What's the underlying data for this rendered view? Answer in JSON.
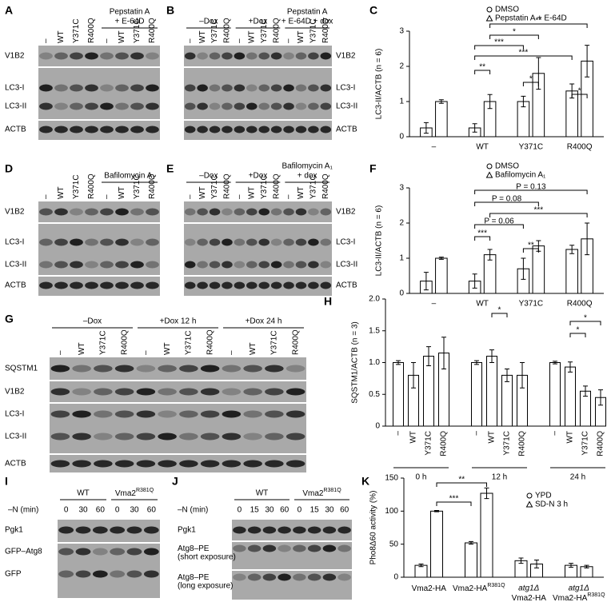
{
  "blots": [
    {
      "panel": "A",
      "lanes": [
        "–",
        "WT",
        "Y371C",
        "R400Q",
        "–",
        "WT",
        "Y371C",
        "R400Q"
      ],
      "groups": [
        [
          "Pepstatin A",
          "+ E-64D"
        ]
      ],
      "rows": [
        "V1B2",
        "LC3-I",
        "LC3-II",
        "ACTB"
      ]
    },
    {
      "panel": "B",
      "lanes": [
        "–",
        "WT",
        "Y371C",
        "R400Q",
        "–",
        "WT",
        "Y371C",
        "R400Q",
        "–",
        "WT",
        "Y371C",
        "R400Q"
      ],
      "groups": [
        "–Dox",
        "+Dox",
        [
          "Pepstatin A",
          "+ E-64D + dox"
        ]
      ],
      "rows": [
        "V1B2",
        "LC3-I",
        "LC3-II",
        "ACTB"
      ]
    },
    {
      "panel": "D",
      "lanes": [
        "–",
        "WT",
        "Y371C",
        "R400Q",
        "–",
        "WT",
        "Y371C",
        "R400Q"
      ],
      "groups": [
        "Bafilomycin A₁"
      ],
      "rows": [
        "V1B2",
        "LC3-I",
        "LC3-II",
        "ACTB"
      ]
    },
    {
      "panel": "E",
      "lanes": [
        "–",
        "WT",
        "Y371C",
        "R400Q",
        "–",
        "WT",
        "Y371C",
        "R400Q",
        "–",
        "WT",
        "Y371C",
        "R400Q"
      ],
      "groups": [
        "–Dox",
        "+Dox",
        [
          "Bafilomycin A₁",
          "+ dox"
        ]
      ],
      "rows": [
        "V1B2",
        "LC3-I",
        "LC3-II",
        "ACTB"
      ]
    },
    {
      "panel": "G",
      "lanes": [
        "–",
        "WT",
        "Y371C",
        "R400Q",
        "–",
        "WT",
        "Y371C",
        "R400Q",
        "–",
        "WT",
        "Y371C",
        "R400Q"
      ],
      "groups": [
        "–Dox",
        "+Dox 12 h",
        "+Dox 24 h"
      ],
      "rows": [
        "SQSTM1",
        "V1B2",
        "LC3-I",
        "LC3-II",
        "ACTB"
      ]
    },
    {
      "panel": "I",
      "axis_label": "–N (min)",
      "lanes": [
        0,
        30,
        60,
        0,
        30,
        60
      ],
      "groups": [
        "WT",
        {
          "main": "Vma2",
          "sup": "R381Q"
        }
      ],
      "rows": [
        "Pgk1",
        "GFP–Atg8",
        "GFP"
      ]
    },
    {
      "panel": "J",
      "axis_label": "–N (min)",
      "lanes": [
        0,
        15,
        30,
        60,
        0,
        15,
        30,
        60
      ],
      "groups": [
        "WT",
        {
          "main": "Vma2",
          "sup": "R381Q"
        }
      ],
      "rows": [
        "Pgk1",
        {
          "main": "Atg8–PE",
          "note": "(short exposure)"
        },
        {
          "main": "Atg8–PE",
          "note": "(long exposure)"
        }
      ]
    }
  ],
  "chart_data": [
    {
      "panel": "C",
      "type": "bar",
      "ylabel": "LC3-II/ACTB (n = 6)",
      "categories": [
        "–",
        "WT",
        "Y371C",
        "R400Q"
      ],
      "series": [
        {
          "name": "DMSO",
          "color": "#ffffff",
          "values": [
            0.25,
            0.25,
            1.0,
            1.3
          ],
          "errors": [
            0.15,
            0.12,
            0.15,
            0.2
          ]
        },
        {
          "name": "Pepstatin A + E-64D",
          "color": "#ffffff",
          "values": [
            1.0,
            1.0,
            1.8,
            2.15
          ],
          "errors": [
            0.05,
            0.2,
            0.45,
            0.45
          ]
        }
      ],
      "ylim": [
        0,
        3
      ],
      "yticks": [
        0,
        1,
        2,
        3
      ],
      "annotations": [
        "**",
        "*",
        "***",
        "***",
        "**",
        "*",
        "*"
      ]
    },
    {
      "panel": "F",
      "type": "bar",
      "ylabel": "LC3-II/ACTB (n = 6)",
      "categories": [
        "–",
        "WT",
        "Y371C",
        "R400Q"
      ],
      "series": [
        {
          "name": "DMSO",
          "color": "#ffffff",
          "values": [
            0.35,
            0.35,
            0.7,
            1.25
          ],
          "errors": [
            0.25,
            0.2,
            0.3,
            0.12
          ]
        },
        {
          "name": "Bafilomycin A₁",
          "color": "#ffffff",
          "values": [
            1.0,
            1.1,
            1.35,
            1.55
          ],
          "errors": [
            0.03,
            0.15,
            0.15,
            0.45
          ]
        }
      ],
      "ylim": [
        0,
        3
      ],
      "yticks": [
        0,
        1,
        2,
        3
      ],
      "annotations": [
        "P = 0.13",
        "P = 0.08",
        "***",
        "P = 0.06",
        "***",
        "**"
      ]
    },
    {
      "panel": "H",
      "type": "bar",
      "ylabel": "SQSTM1/ACTB (n = 3)",
      "categories": [
        "–",
        "WT",
        "Y371C",
        "R400Q",
        "–",
        "WT",
        "Y371C",
        "R400Q",
        "–",
        "WT",
        "Y371C",
        "R400Q"
      ],
      "groups": [
        "0 h",
        "12 h",
        "24 h"
      ],
      "series": [
        {
          "color": "#ffffff",
          "values": [
            1.0,
            0.8,
            1.1,
            1.15,
            1.0,
            1.1,
            0.8,
            0.8,
            1.0,
            0.93,
            0.55,
            0.45
          ],
          "errors": [
            0.03,
            0.2,
            0.15,
            0.25,
            0.03,
            0.1,
            0.1,
            0.2,
            0.02,
            0.08,
            0.08,
            0.12
          ]
        }
      ],
      "ylim": [
        0,
        2
      ],
      "yticks": [
        0,
        0.5,
        {
          "value": 1,
          "label": "1.0"
        },
        1.5,
        {
          "value": 2,
          "label": "2.0"
        }
      ],
      "annotations": [
        "*",
        "*",
        "*"
      ]
    },
    {
      "panel": "K",
      "type": "bar",
      "ylabel": "Pho8Δ60 activity (%)",
      "categories": [
        {
          "main": "Vma2-HA"
        },
        {
          "main": "Vma2-HA",
          "sup": "R381Q"
        },
        {
          "pre": "atg1Δ",
          "main": "Vma2-HA"
        },
        {
          "pre": "atg1Δ",
          "main": "Vma2-HA",
          "sup": "R381Q"
        }
      ],
      "series": [
        {
          "name": "YPD",
          "color": "#ffffff",
          "values": [
            18,
            52,
            25,
            18
          ],
          "errors": [
            2,
            2,
            4,
            3
          ]
        },
        {
          "name": "SD-N 3 h",
          "color": "#ffffff",
          "values": [
            100,
            127,
            20,
            16
          ],
          "errors": [
            1,
            8,
            6,
            2
          ]
        }
      ],
      "ylim": [
        0,
        150
      ],
      "yticks": [
        0,
        50,
        100,
        150
      ],
      "annotations": [
        "***",
        "**"
      ]
    }
  ]
}
